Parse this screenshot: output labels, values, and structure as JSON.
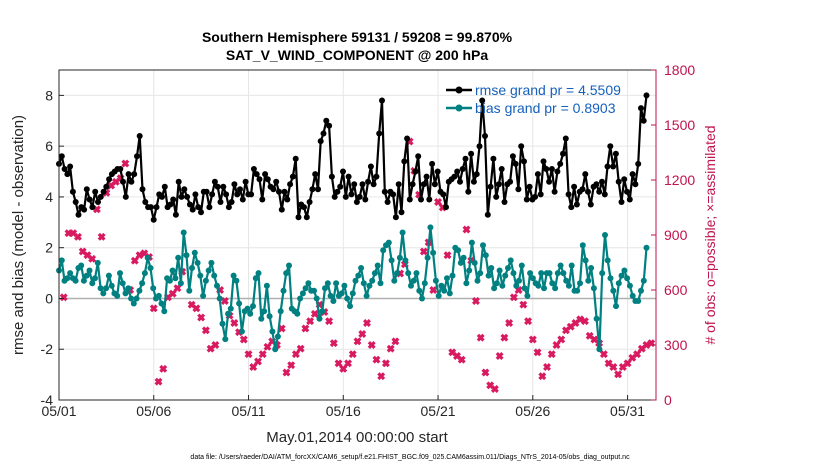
{
  "chart_data": {
    "type": "line",
    "title_line1": "Southern Hemisphere 59131 / 59208 = 99.870%",
    "title_line2": "SAT_V_WIND_COMPONENT @ 200 hPa",
    "xlabel": "May.01,2014 00:00:00 start",
    "ylabel_left": "rmse and bias (model - observation)",
    "ylabel_right": "# of obs: o=possible; ×=assimilated",
    "footer": "data file: /Users/raeder/DAI/ATM_forcXX/CAM6_setup/f.e21.FHIST_BGC.f09_025.CAM6assim.011/Diags_NTrS_2014-05/obs_diag_output.nc",
    "x_unit": "days since May 01",
    "xlim": [
      0,
      31.5
    ],
    "ylim_left": [
      -4,
      9
    ],
    "ylim_right": [
      0,
      1800
    ],
    "x_ticks": [
      0,
      5,
      10,
      15,
      20,
      25,
      30
    ],
    "x_tick_labels": [
      "05/01",
      "05/06",
      "05/11",
      "05/16",
      "05/21",
      "05/26",
      "05/31"
    ],
    "y_ticks_left": [
      -4,
      -2,
      0,
      2,
      4,
      6,
      8
    ],
    "y_tick_labels_left": [
      "-4",
      "-2",
      "0",
      "2",
      "4",
      "6",
      "8"
    ],
    "y_ticks_right": [
      0,
      300,
      600,
      900,
      1200,
      1500,
      1800
    ],
    "y_tick_labels_right": [
      "0",
      "300",
      "600",
      "900",
      "1200",
      "1500",
      "1800"
    ],
    "grid": true,
    "legend_position": "top-right",
    "colors": {
      "rmse": "#000000",
      "bias": "#008080",
      "obs": "#d81b60",
      "zero_line": "#b0b0b0",
      "right_axis": "#c0134f"
    },
    "series": [
      {
        "name": "rmse grand pr = 4.5509",
        "axis": "left",
        "values": [
          5.3,
          5.6,
          5.1,
          4.9,
          5.2,
          4.2,
          3.8,
          3.3,
          3.6,
          3.5,
          4.3,
          3.9,
          3.6,
          4.2,
          3.8,
          4.0,
          4.2,
          4.4,
          4.7,
          4.9,
          5.0,
          5.1,
          5.1,
          4.6,
          4.0,
          4.9,
          4.6,
          4.9,
          5.6,
          6.4,
          4.3,
          3.8,
          3.6,
          3.6,
          3.1,
          3.6,
          4.1,
          4.0,
          4.4,
          3.6,
          3.7,
          3.9,
          3.3,
          4.6,
          4.0,
          4.3,
          4.0,
          3.7,
          3.5,
          4.1,
          3.6,
          3.4,
          4.2,
          4.2,
          3.6,
          4.1,
          4.6,
          4.4,
          3.8,
          4.4,
          4.1,
          3.6,
          3.8,
          4.5,
          4.1,
          4.3,
          3.9,
          4.6,
          4.1,
          4.1,
          5.1,
          4.9,
          4.7,
          3.9,
          4.9,
          4.7,
          4.4,
          4.3,
          4.6,
          4.2,
          3.5,
          4.2,
          3.9,
          4.5,
          4.8,
          5.5,
          3.2,
          3.7,
          3.6,
          3.2,
          3.8,
          4.3,
          4.9,
          4.3,
          6.2,
          6.5,
          7.0,
          6.8,
          4.8,
          4.0,
          4.2,
          4.4,
          5.0,
          4.0,
          4.8,
          4.1,
          4.5,
          3.8,
          4.0,
          4.5,
          3.9,
          4.6,
          5.2,
          4.5,
          4.8,
          6.5,
          7.8,
          4.2,
          3.8,
          4.2,
          4.1,
          3.2,
          4.5,
          3.4,
          5.4,
          6.3,
          3.9,
          4.5,
          5.0,
          5.6,
          3.9,
          4.5,
          4.8,
          3.9,
          5.3,
          4.5,
          5.0,
          4.2,
          4.1,
          3.6,
          4.6,
          4.7,
          4.8,
          5.0,
          4.6,
          5.1,
          5.5,
          4.2,
          5.7,
          4.6,
          4.9,
          6.0,
          7.8,
          6.4,
          3.3,
          4.4,
          5.5,
          4.0,
          4.5,
          5.1,
          3.8,
          4.5,
          4.6,
          5.6,
          5.3,
          4.3,
          6.0,
          5.4,
          3.9,
          4.4,
          3.9,
          4.0,
          4.9,
          4.1,
          5.4,
          5.1,
          4.6,
          5.1,
          4.2,
          5.0,
          5.3,
          5.7,
          6.3,
          4.1,
          3.6,
          4.4,
          3.7,
          4.2,
          4.3,
          4.9,
          4.2,
          3.7,
          4.4,
          4.5,
          4.2,
          4.6,
          4.1,
          5.2,
          6.0,
          5.2,
          5.7,
          4.6,
          3.8,
          4.7,
          4.2,
          3.9,
          4.9,
          4.5,
          5.3,
          7.5,
          7.0,
          8.0
        ]
      },
      {
        "name": "bias grand pr = 0.8903",
        "axis": "left",
        "values": [
          1.1,
          1.5,
          0.7,
          0.8,
          1.0,
          0.8,
          0.7,
          1.2,
          1.3,
          0.7,
          0.9,
          1.1,
          0.6,
          0.8,
          1.4,
          0.4,
          0.2,
          0.4,
          0.9,
          0.5,
          0.2,
          0.1,
          1.0,
          0.6,
          0.2,
          0.4,
          0.0,
          -0.2,
          0.0,
          0.3,
          0.6,
          1.0,
          1.6,
          1.2,
          0.4,
          0.0,
          0.1,
          -0.2,
          -0.5,
          0.8,
          0.7,
          1.1,
          0.8,
          1.6,
          0.6,
          2.6,
          1.7,
          0.3,
          1.2,
          1.8,
          1.4,
          0.9,
          0.1,
          0.7,
          1.1,
          1.4,
          0.9,
          0.5,
          0.0,
          -1.0,
          -1.6,
          -0.6,
          -0.4,
          0.9,
          0.7,
          -0.2,
          -1.3,
          -0.5,
          -0.4,
          -0.6,
          -0.3,
          0.8,
          1.0,
          -0.8,
          -0.5,
          0.5,
          -0.7,
          -1.3,
          -2.0,
          -1.5,
          -0.5,
          0.3,
          1.0,
          1.3,
          -0.4,
          -0.5,
          -0.6,
          0.0,
          0.2,
          0.4,
          0.6,
          0.3,
          0.3,
          0.0,
          -0.8,
          -0.5,
          0.4,
          0.6,
          0.1,
          -0.1,
          0.6,
          0.1,
          0.2,
          0.5,
          0.0,
          -0.3,
          0.2,
          0.7,
          0.9,
          1.2,
          0.6,
          0.1,
          0.5,
          0.7,
          1.0,
          1.3,
          0.6,
          1.9,
          2.1,
          2.2,
          1.5,
          0.7,
          1.0,
          1.6,
          2.6,
          1.5,
          1.0,
          0.5,
          0.7,
          1.0,
          0.3,
          0.0,
          0.6,
          1.6,
          2.8,
          1.8,
          0.7,
          0.1,
          0.5,
          0.3,
          0.8,
          0.2,
          0.9,
          2.0,
          1.9,
          1.4,
          1.6,
          0.6,
          1.1,
          2.2,
          1.4,
          0.7,
          1.0,
          2.1,
          1.7,
          0.9,
          1.2,
          0.4,
          0.6,
          1.1,
          0.5,
          0.9,
          1.2,
          1.5,
          1.0,
          0.5,
          0.7,
          1.3,
          0.4,
          0.1,
          1.0,
          0.8,
          0.6,
          0.5,
          1.0,
          0.4,
          1.0,
          1.0,
          0.6,
          0.4,
          1.0,
          1.3,
          1.0,
          0.7,
          0.5,
          1.3,
          0.3,
          0.3,
          0.6,
          2.1,
          1.5,
          0.7,
          1.2,
          0.4,
          -0.8,
          -2.0,
          1.0,
          2.5,
          1.5,
          0.8,
          0.3,
          -0.3,
          0.6,
          0.9,
          1.1,
          0.8,
          0.5,
          0.1,
          -0.1,
          -0.1,
          0.3,
          0.7,
          2.0
        ]
      },
      {
        "name": "assimilated",
        "axis": "right",
        "points": [
          [
            0.25,
            560
          ],
          [
            0.5,
            910
          ],
          [
            0.75,
            910
          ],
          [
            1.0,
            890
          ],
          [
            1.25,
            810
          ],
          [
            1.5,
            790
          ],
          [
            1.75,
            770
          ],
          [
            2.0,
            1040
          ],
          [
            2.25,
            890
          ],
          [
            2.5,
            1130
          ],
          [
            2.75,
            1170
          ],
          [
            3.0,
            1190
          ],
          [
            3.25,
            1210
          ],
          [
            3.5,
            1290
          ],
          [
            3.75,
            600
          ],
          [
            4.0,
            760
          ],
          [
            4.25,
            790
          ],
          [
            4.5,
            800
          ],
          [
            4.75,
            780
          ],
          [
            5.0,
            500
          ],
          [
            5.25,
            100
          ],
          [
            5.5,
            170
          ],
          [
            5.75,
            560
          ],
          [
            6.0,
            580
          ],
          [
            6.25,
            610
          ],
          [
            6.5,
            700
          ],
          [
            7.0,
            520
          ],
          [
            7.25,
            500
          ],
          [
            7.5,
            450
          ],
          [
            7.75,
            380
          ],
          [
            8.0,
            280
          ],
          [
            8.25,
            300
          ],
          [
            8.5,
            600
          ],
          [
            8.75,
            540
          ],
          [
            9.0,
            460
          ],
          [
            9.25,
            420
          ],
          [
            9.5,
            370
          ],
          [
            9.75,
            330
          ],
          [
            10.0,
            250
          ],
          [
            10.25,
            180
          ],
          [
            10.5,
            210
          ],
          [
            10.75,
            250
          ],
          [
            11.0,
            290
          ],
          [
            11.25,
            320
          ],
          [
            11.5,
            300
          ],
          [
            11.75,
            390
          ],
          [
            12.0,
            150
          ],
          [
            12.25,
            190
          ],
          [
            12.5,
            250
          ],
          [
            12.75,
            280
          ],
          [
            13.0,
            390
          ],
          [
            13.25,
            430
          ],
          [
            13.5,
            470
          ],
          [
            13.75,
            520
          ],
          [
            14.0,
            480
          ],
          [
            14.25,
            430
          ],
          [
            14.5,
            310
          ],
          [
            14.75,
            200
          ],
          [
            15.0,
            170
          ],
          [
            15.25,
            200
          ],
          [
            15.5,
            250
          ],
          [
            15.75,
            320
          ],
          [
            16.0,
            360
          ],
          [
            16.25,
            420
          ],
          [
            16.5,
            300
          ],
          [
            16.75,
            220
          ],
          [
            17.0,
            130
          ],
          [
            17.25,
            200
          ],
          [
            17.5,
            280
          ],
          [
            17.75,
            320
          ],
          [
            18.0,
            690
          ],
          [
            18.25,
            740
          ],
          [
            18.5,
            1410
          ],
          [
            18.75,
            1250
          ],
          [
            19.0,
            1120
          ],
          [
            19.25,
            810
          ],
          [
            19.5,
            860
          ],
          [
            19.75,
            600
          ],
          [
            20.0,
            1080
          ],
          [
            20.25,
            1050
          ],
          [
            20.5,
            790
          ],
          [
            20.75,
            260
          ],
          [
            21.0,
            240
          ],
          [
            21.25,
            220
          ],
          [
            21.5,
            930
          ],
          [
            21.75,
            760
          ],
          [
            22.0,
            540
          ],
          [
            22.25,
            340
          ],
          [
            22.5,
            150
          ],
          [
            22.75,
            80
          ],
          [
            23.0,
            60
          ],
          [
            23.25,
            240
          ],
          [
            23.5,
            340
          ],
          [
            23.75,
            420
          ],
          [
            24.0,
            560
          ],
          [
            24.25,
            600
          ],
          [
            24.5,
            520
          ],
          [
            24.75,
            430
          ],
          [
            25.0,
            330
          ],
          [
            25.25,
            260
          ],
          [
            25.5,
            130
          ],
          [
            25.75,
            180
          ],
          [
            26.0,
            250
          ],
          [
            26.25,
            300
          ],
          [
            26.5,
            330
          ],
          [
            26.75,
            380
          ],
          [
            27.0,
            400
          ],
          [
            27.25,
            420
          ],
          [
            27.5,
            440
          ],
          [
            27.75,
            430
          ],
          [
            28.0,
            350
          ],
          [
            28.25,
            330
          ],
          [
            28.5,
            310
          ],
          [
            28.75,
            250
          ],
          [
            29.0,
            200
          ],
          [
            29.25,
            180
          ],
          [
            29.5,
            140
          ],
          [
            29.75,
            180
          ],
          [
            30.0,
            200
          ],
          [
            30.25,
            230
          ],
          [
            30.5,
            250
          ],
          [
            30.75,
            280
          ],
          [
            31.0,
            300
          ],
          [
            31.25,
            310
          ]
        ]
      }
    ]
  }
}
